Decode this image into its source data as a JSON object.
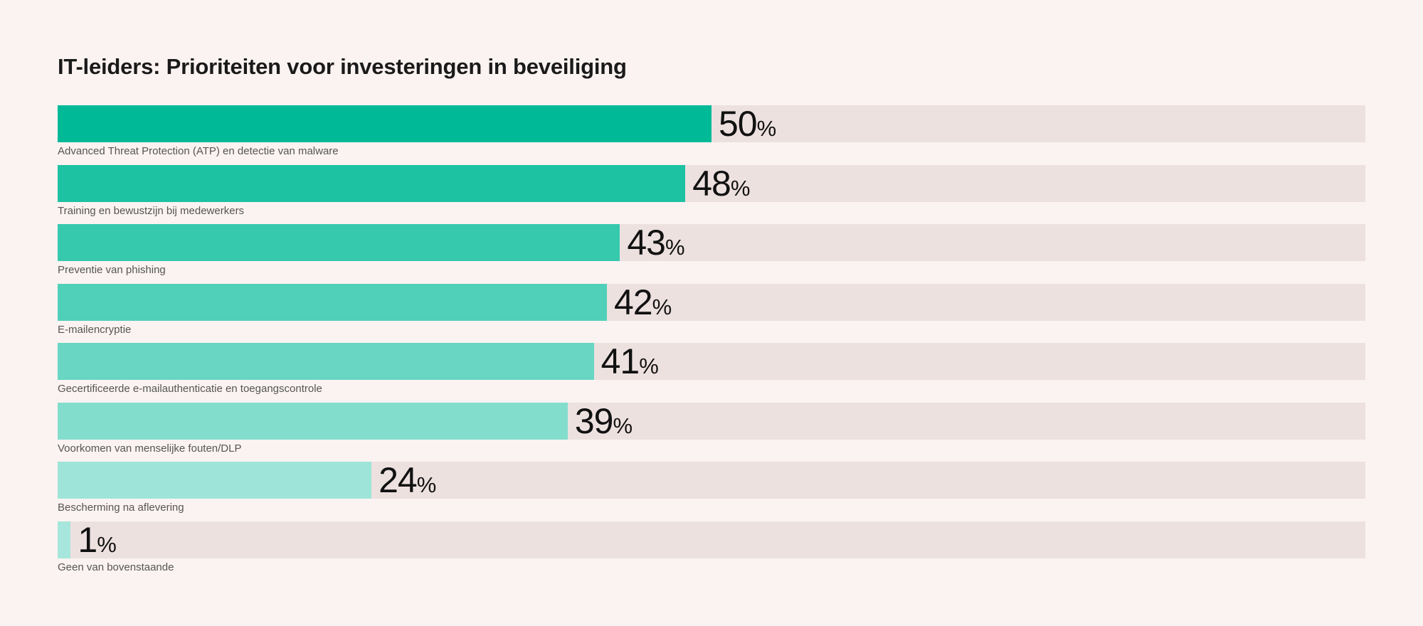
{
  "chart_data": {
    "type": "bar",
    "orientation": "horizontal",
    "title": "IT-leiders: Prioriteiten voor investeringen in beveiliging",
    "categories": [
      "Advanced Threat Protection (ATP) en detectie van malware",
      "Training en bewustzijn bij medewerkers",
      "Preventie van phishing",
      "E-mailencryptie",
      "Gecertificeerde e-mailauthenticatie en toegangscontrole",
      "Voorkomen van menselijke fouten/DLP",
      "Bescherming na aflevering",
      "Geen van bovenstaande"
    ],
    "values": [
      50,
      48,
      43,
      42,
      41,
      39,
      24,
      1
    ],
    "unit": "%",
    "xlim": [
      0,
      100
    ],
    "xlabel": "",
    "ylabel": "",
    "grid": false,
    "legend": "none"
  },
  "colors": {
    "background": "#fbf3f1",
    "track": "#ede1e0",
    "bars": [
      "#00b997",
      "#1cc2a2",
      "#37c9ae",
      "#50d0b8",
      "#68d6c2",
      "#83ddcd",
      "#9ee4d8",
      "#a6e6dc"
    ]
  }
}
